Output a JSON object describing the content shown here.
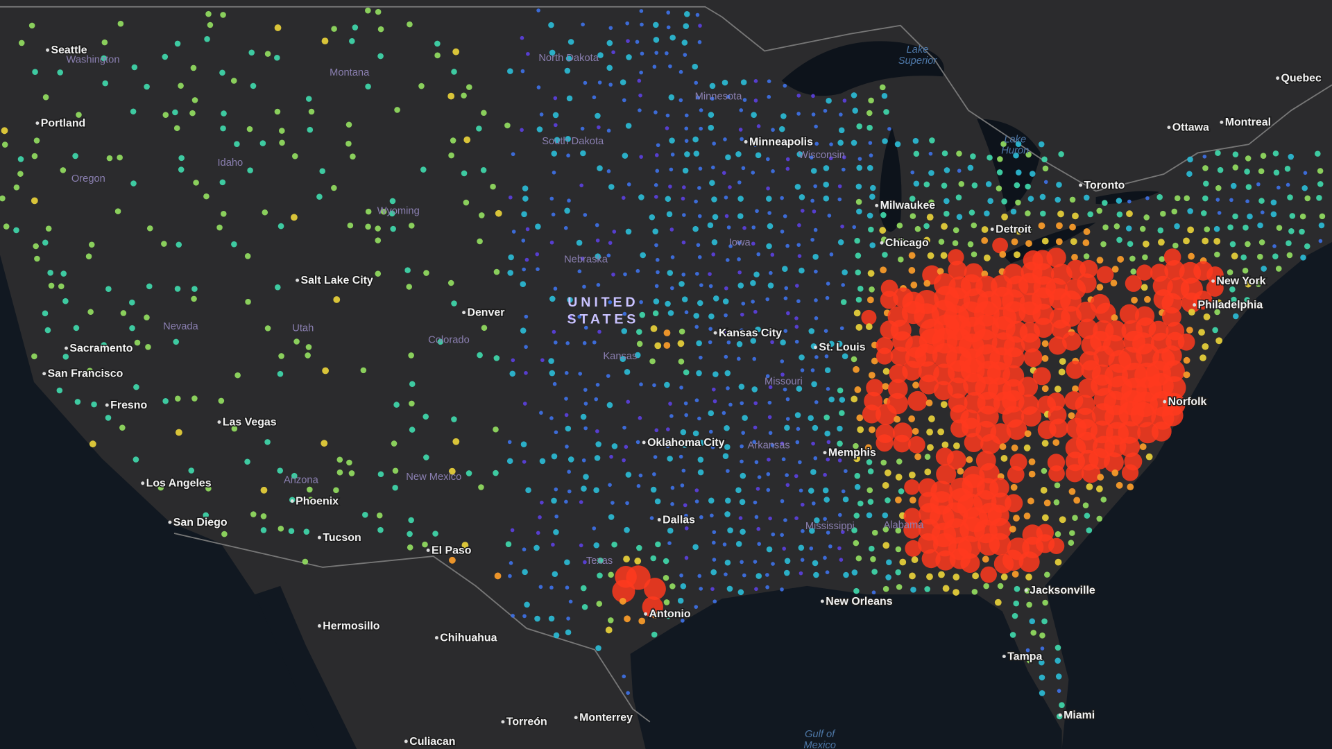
{
  "map": {
    "country_label": [
      "UNITED",
      "STATES"
    ],
    "cities": [
      "Seattle",
      "Portland",
      "Sacramento",
      "San Francisco",
      "Fresno",
      "Las Vegas",
      "Los Angeles",
      "San Diego",
      "Phoenix",
      "Tucson",
      "El Paso",
      "Salt Lake City",
      "Denver",
      "Kansas City",
      "Oklahoma City",
      "Dallas",
      "Antonio",
      "New Orleans",
      "Memphis",
      "St. Louis",
      "Chicago",
      "Milwaukee",
      "Detroit",
      "Minneapolis",
      "Toronto",
      "Ottawa",
      "Montreal",
      "Quebec",
      "New York",
      "Philadelphia",
      "Norfolk",
      "Jacksonville",
      "Tampa",
      "Miami",
      "Hermosillo",
      "Chihuahua",
      "Torreón",
      "Monterrey",
      "Culiacan"
    ],
    "states": [
      "Washington",
      "Montana",
      "North Dakota",
      "Minnesota",
      "South Dakota",
      "Wisconsin",
      "Idaho",
      "Oregon",
      "Wyoming",
      "Nebraska",
      "Iowa",
      "Nevada",
      "Utah",
      "Colorado",
      "Kansas",
      "Missouri",
      "Arizona",
      "New Mexico",
      "Arkansas",
      "Texas",
      "Mississippi",
      "Alabama"
    ],
    "water": [
      [
        "Lake",
        "Superior"
      ],
      [
        "Lake",
        "Huron"
      ],
      [
        "Gulf of",
        "Mexico"
      ]
    ]
  }
}
